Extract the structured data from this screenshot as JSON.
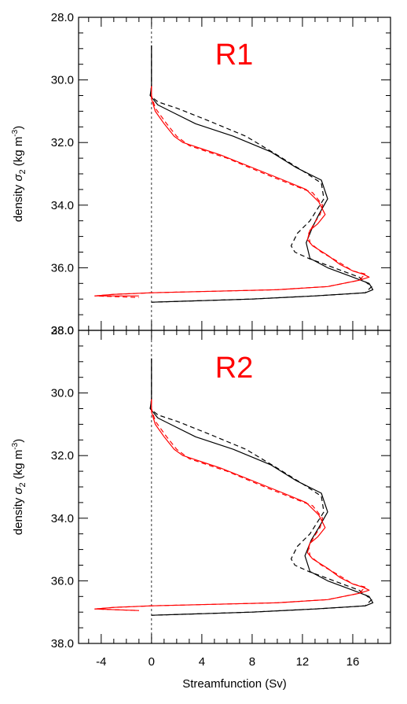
{
  "figure": {
    "xlabel": "Streamfunction (Sv)",
    "ylabel_main": "density ",
    "ylabel_sym": "σ",
    "ylabel_sub": "2",
    "ylabel_unit": " (kg m",
    "ylabel_exp": "-3",
    "ylabel_close": ")",
    "xticks": [
      "-4",
      "0",
      "4",
      "8",
      "12",
      "16"
    ],
    "yticks": [
      "28.0",
      "30.0",
      "32.0",
      "34.0",
      "36.0",
      "38.0"
    ],
    "colors": {
      "black": "#000000",
      "red": "#ff0000",
      "zero_line": "#000000"
    }
  },
  "chart_data": [
    {
      "type": "line",
      "title": "R1",
      "xlabel": "",
      "ylabel": "density σ₂ (kg m⁻³)",
      "xlim": [
        -5.8,
        19
      ],
      "ylim": [
        38.0,
        28.0
      ],
      "y_inverted": true,
      "grid": false,
      "series": [
        {
          "color": "#000000",
          "dash": "solid",
          "points": [
            [
              0,
              28.9
            ],
            [
              0,
              30.2
            ],
            [
              -0.1,
              30.5
            ],
            [
              0.5,
              30.8
            ],
            [
              1.5,
              31.0
            ],
            [
              3.5,
              31.4
            ],
            [
              6.5,
              31.8
            ],
            [
              9.5,
              32.3
            ],
            [
              11.5,
              32.8
            ],
            [
              13.5,
              33.2
            ],
            [
              14.0,
              33.8
            ],
            [
              13.3,
              34.3
            ],
            [
              12.8,
              34.7
            ],
            [
              12.3,
              35.2
            ],
            [
              12.6,
              35.7
            ],
            [
              14.0,
              36.0
            ],
            [
              16.0,
              36.3
            ],
            [
              17.3,
              36.5
            ],
            [
              17.6,
              36.7
            ],
            [
              17.0,
              36.8
            ],
            [
              13.0,
              36.9
            ],
            [
              8.0,
              37.0
            ],
            [
              0,
              37.1
            ]
          ]
        },
        {
          "color": "#000000",
          "dash": "dashed",
          "points": [
            [
              0,
              28.9
            ],
            [
              0,
              30.2
            ],
            [
              -0.1,
              30.5
            ],
            [
              0.5,
              30.7
            ],
            [
              2.0,
              30.9
            ],
            [
              4.5,
              31.3
            ],
            [
              7.5,
              31.8
            ],
            [
              10.0,
              32.4
            ],
            [
              12.0,
              32.9
            ],
            [
              13.5,
              33.3
            ],
            [
              13.7,
              33.8
            ],
            [
              12.6,
              34.5
            ],
            [
              11.6,
              34.9
            ],
            [
              11.1,
              35.3
            ],
            [
              11.4,
              35.5
            ],
            [
              12.5,
              35.7
            ],
            [
              14.5,
              36.0
            ],
            [
              16.5,
              36.3
            ],
            [
              17.5,
              36.6
            ],
            [
              17.0,
              36.8
            ],
            [
              13.0,
              36.9
            ],
            [
              8.0,
              37.0
            ],
            [
              0,
              37.1
            ]
          ]
        },
        {
          "color": "#ff0000",
          "dash": "solid",
          "points": [
            [
              0,
              30.2
            ],
            [
              0,
              30.6
            ],
            [
              0.3,
              31.0
            ],
            [
              1.0,
              31.4
            ],
            [
              1.8,
              31.8
            ],
            [
              2.5,
              32.0
            ],
            [
              5.5,
              32.4
            ],
            [
              8.0,
              32.8
            ],
            [
              10.5,
              33.2
            ],
            [
              12.3,
              33.5
            ],
            [
              13.3,
              33.9
            ],
            [
              13.8,
              34.3
            ],
            [
              13.2,
              34.6
            ],
            [
              12.6,
              34.8
            ],
            [
              12.4,
              35.1
            ],
            [
              12.8,
              35.3
            ],
            [
              14.0,
              35.6
            ],
            [
              15.0,
              35.9
            ],
            [
              16.0,
              36.1
            ],
            [
              16.8,
              36.2
            ],
            [
              17.3,
              36.3
            ],
            [
              16.5,
              36.4
            ],
            [
              14.0,
              36.6
            ],
            [
              10.0,
              36.7
            ],
            [
              0,
              36.8
            ],
            [
              -3.0,
              36.85
            ],
            [
              -4.5,
              36.9
            ],
            [
              -1.0,
              36.9
            ]
          ]
        },
        {
          "color": "#ff0000",
          "dash": "dashed",
          "points": [
            [
              0,
              30.2
            ],
            [
              0,
              30.5
            ],
            [
              0.3,
              30.9
            ],
            [
              1.2,
              31.4
            ],
            [
              2.0,
              31.8
            ],
            [
              3.0,
              32.1
            ],
            [
              6.0,
              32.5
            ],
            [
              9.0,
              33.0
            ],
            [
              11.5,
              33.4
            ],
            [
              12.8,
              33.6
            ],
            [
              13.6,
              34.0
            ],
            [
              13.4,
              34.3
            ],
            [
              12.9,
              34.6
            ],
            [
              12.5,
              34.9
            ],
            [
              12.6,
              35.2
            ],
            [
              13.5,
              35.5
            ],
            [
              14.8,
              35.8
            ],
            [
              16.0,
              36.1
            ],
            [
              17.0,
              36.2
            ],
            [
              16.5,
              36.4
            ],
            [
              14.0,
              36.6
            ],
            [
              10.0,
              36.7
            ],
            [
              0,
              36.8
            ],
            [
              -3.0,
              36.85
            ],
            [
              -4.5,
              36.9
            ],
            [
              -1.0,
              36.95
            ]
          ]
        }
      ]
    },
    {
      "type": "line",
      "title": "R2",
      "xlabel": "Streamfunction (Sv)",
      "ylabel": "density σ₂ (kg m⁻³)",
      "xlim": [
        -5.8,
        19
      ],
      "ylim": [
        38.0,
        28.0
      ],
      "y_inverted": true,
      "grid": false,
      "series": [
        {
          "color": "#000000",
          "dash": "solid",
          "points": [
            [
              0,
              28.9
            ],
            [
              0,
              30.2
            ],
            [
              -0.1,
              30.5
            ],
            [
              0.5,
              30.8
            ],
            [
              1.5,
              31.0
            ],
            [
              3.5,
              31.4
            ],
            [
              6.5,
              31.8
            ],
            [
              9.5,
              32.3
            ],
            [
              11.5,
              32.8
            ],
            [
              13.5,
              33.2
            ],
            [
              14.0,
              33.8
            ],
            [
              13.3,
              34.3
            ],
            [
              12.7,
              34.7
            ],
            [
              12.2,
              35.2
            ],
            [
              12.6,
              35.7
            ],
            [
              14.0,
              36.0
            ],
            [
              16.0,
              36.3
            ],
            [
              17.3,
              36.5
            ],
            [
              17.6,
              36.7
            ],
            [
              17.0,
              36.8
            ],
            [
              13.0,
              36.9
            ],
            [
              8.0,
              37.0
            ],
            [
              0,
              37.1
            ]
          ]
        },
        {
          "color": "#000000",
          "dash": "dashed",
          "points": [
            [
              0,
              28.9
            ],
            [
              0,
              30.2
            ],
            [
              -0.1,
              30.5
            ],
            [
              0.5,
              30.7
            ],
            [
              2.0,
              30.9
            ],
            [
              4.5,
              31.3
            ],
            [
              7.5,
              31.8
            ],
            [
              10.0,
              32.4
            ],
            [
              12.0,
              32.9
            ],
            [
              13.5,
              33.3
            ],
            [
              13.7,
              33.8
            ],
            [
              12.6,
              34.5
            ],
            [
              11.6,
              34.9
            ],
            [
              11.1,
              35.3
            ],
            [
              11.4,
              35.5
            ],
            [
              12.5,
              35.7
            ],
            [
              14.5,
              36.0
            ],
            [
              16.5,
              36.3
            ],
            [
              17.5,
              36.6
            ],
            [
              17.0,
              36.8
            ],
            [
              13.0,
              36.9
            ],
            [
              8.0,
              37.0
            ],
            [
              0,
              37.1
            ]
          ]
        },
        {
          "color": "#ff0000",
          "dash": "solid",
          "points": [
            [
              0,
              30.2
            ],
            [
              0,
              30.6
            ],
            [
              0.3,
              31.0
            ],
            [
              1.0,
              31.4
            ],
            [
              1.8,
              31.8
            ],
            [
              2.5,
              32.0
            ],
            [
              5.5,
              32.4
            ],
            [
              8.0,
              32.8
            ],
            [
              10.5,
              33.2
            ],
            [
              12.3,
              33.5
            ],
            [
              13.3,
              33.9
            ],
            [
              13.8,
              34.3
            ],
            [
              13.2,
              34.6
            ],
            [
              12.6,
              34.8
            ],
            [
              12.4,
              35.1
            ],
            [
              12.8,
              35.3
            ],
            [
              14.0,
              35.6
            ],
            [
              15.0,
              35.9
            ],
            [
              16.0,
              36.1
            ],
            [
              16.8,
              36.2
            ],
            [
              17.3,
              36.3
            ],
            [
              16.5,
              36.4
            ],
            [
              14.0,
              36.6
            ],
            [
              10.0,
              36.7
            ],
            [
              0,
              36.8
            ],
            [
              -3.0,
              36.85
            ],
            [
              -4.5,
              36.9
            ],
            [
              -1.0,
              36.95
            ]
          ]
        },
        {
          "color": "#ff0000",
          "dash": "dashed",
          "points": [
            [
              0,
              30.2
            ],
            [
              0,
              30.5
            ],
            [
              0.3,
              30.9
            ],
            [
              1.2,
              31.4
            ],
            [
              2.0,
              31.8
            ],
            [
              3.0,
              32.1
            ],
            [
              6.0,
              32.5
            ],
            [
              9.0,
              33.0
            ],
            [
              11.5,
              33.4
            ],
            [
              12.8,
              33.6
            ],
            [
              13.6,
              34.0
            ],
            [
              13.4,
              34.3
            ],
            [
              12.9,
              34.6
            ],
            [
              12.5,
              34.9
            ],
            [
              12.6,
              35.2
            ],
            [
              13.5,
              35.5
            ],
            [
              14.8,
              35.8
            ],
            [
              16.0,
              36.1
            ],
            [
              17.0,
              36.2
            ],
            [
              16.5,
              36.4
            ],
            [
              14.0,
              36.6
            ],
            [
              10.0,
              36.7
            ],
            [
              0,
              36.8
            ],
            [
              -3.0,
              36.85
            ],
            [
              -4.5,
              36.9
            ],
            [
              -1.0,
              36.95
            ]
          ]
        }
      ]
    }
  ]
}
